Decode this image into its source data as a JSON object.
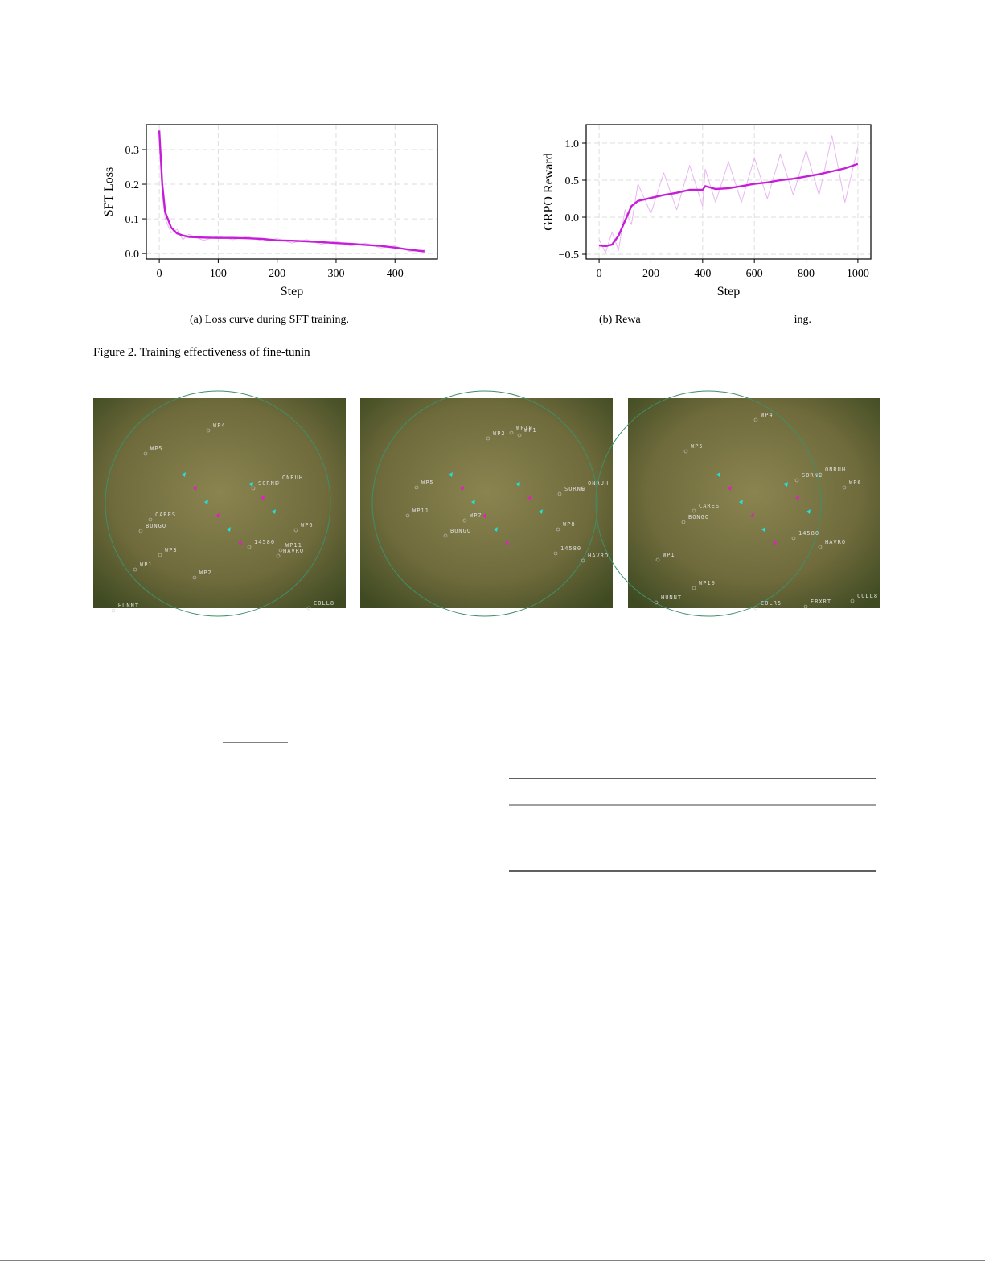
{
  "chart_data": [
    {
      "type": "line",
      "xlabel": "Step",
      "ylabel": "SFT Loss",
      "caption": "(a) Loss curve during SFT training.",
      "x": [
        0,
        5,
        10,
        20,
        30,
        40,
        50,
        75,
        100,
        125,
        150,
        175,
        200,
        225,
        250,
        275,
        300,
        325,
        350,
        375,
        400,
        425,
        450
      ],
      "series": [
        {
          "color": "#e9b6f2",
          "values": [
            0.34,
            0.17,
            0.1,
            0.06,
            0.07,
            0.04,
            0.055,
            0.038,
            0.05,
            0.04,
            0.049,
            0.036,
            0.043,
            0.03,
            0.04,
            0.027,
            0.035,
            0.022,
            0.03,
            0.016,
            0.022,
            0.006,
            0.01
          ]
        },
        {
          "color": "#c61ed8",
          "values": [
            0.355,
            0.2,
            0.12,
            0.075,
            0.058,
            0.052,
            0.048,
            0.046,
            0.045,
            0.045,
            0.044,
            0.042,
            0.038,
            0.037,
            0.035,
            0.033,
            0.03,
            0.028,
            0.025,
            0.022,
            0.017,
            0.011,
            0.006
          ]
        }
      ],
      "xlim": [
        -22,
        472
      ],
      "ylim": [
        -0.016,
        0.372
      ],
      "xticks": [
        0,
        100,
        200,
        300,
        400
      ],
      "yticks": [
        {
          "value": 0,
          "label": "0.0"
        },
        0.1,
        0.2,
        0.3
      ],
      "grid": true
    },
    {
      "type": "line",
      "xlabel": "Step",
      "ylabel": "GRPO Reward",
      "caption": [
        "(b) Rewa",
        "ing."
      ],
      "x": [
        0,
        25,
        50,
        75,
        100,
        125,
        150,
        200,
        250,
        300,
        350,
        400,
        410,
        450,
        500,
        550,
        600,
        650,
        700,
        750,
        800,
        850,
        900,
        950,
        1000
      ],
      "series": [
        {
          "color": "#e9b6f2",
          "values": [
            -0.3,
            -0.48,
            -0.2,
            -0.45,
            0.1,
            -0.1,
            0.45,
            0.05,
            0.6,
            0.1,
            0.7,
            0.15,
            0.65,
            0.2,
            0.75,
            0.2,
            0.8,
            0.25,
            0.85,
            0.3,
            0.9,
            0.3,
            1.1,
            0.2,
            0.95
          ]
        },
        {
          "color": "#c61ed8",
          "values": [
            -0.38,
            -0.39,
            -0.37,
            -0.25,
            -0.05,
            0.15,
            0.22,
            0.26,
            0.3,
            0.33,
            0.37,
            0.37,
            0.42,
            0.38,
            0.39,
            0.42,
            0.45,
            0.47,
            0.5,
            0.52,
            0.55,
            0.58,
            0.62,
            0.66,
            0.72
          ]
        }
      ],
      "xlim": [
        -50,
        1050
      ],
      "ylim": [
        -0.565,
        1.25
      ],
      "xticks": [
        0,
        200,
        400,
        600,
        800,
        1000
      ],
      "yticks": [
        {
          "value": -0.5,
          "label": "−0.5"
        },
        {
          "value": 0,
          "label": "0.0"
        },
        0.5,
        {
          "value": 1,
          "label": "1.0"
        }
      ],
      "grid": true
    }
  ],
  "figure_caption": "Figure 2. Training effectiveness of fine-tunin",
  "radar": [
    {
      "labels": [
        "WP4",
        "WP5",
        "SORNE",
        "ONRUH",
        "CARES",
        "BONGO",
        "WP3",
        "WP6",
        "14580",
        "WP11",
        "HAVRO",
        "WP1",
        "WP2",
        "HUNNT",
        "COLL8"
      ]
    },
    {
      "labels": [
        "WP2",
        "WP10",
        "WP1",
        "WP5",
        "SORNE",
        "ONRUH",
        "WP11",
        "WP7",
        "BONGO",
        "WP8",
        "14580",
        "HAVRO"
      ]
    },
    {
      "labels": [
        "WP4",
        "WP5",
        "SORNE",
        "ONRUH",
        "WP6",
        "CARES",
        "BONGO",
        "14580",
        "HAVRO",
        "WP1",
        "WP10",
        "HUNNT",
        "COLR5",
        "ERXRT",
        "COLL8"
      ]
    }
  ]
}
